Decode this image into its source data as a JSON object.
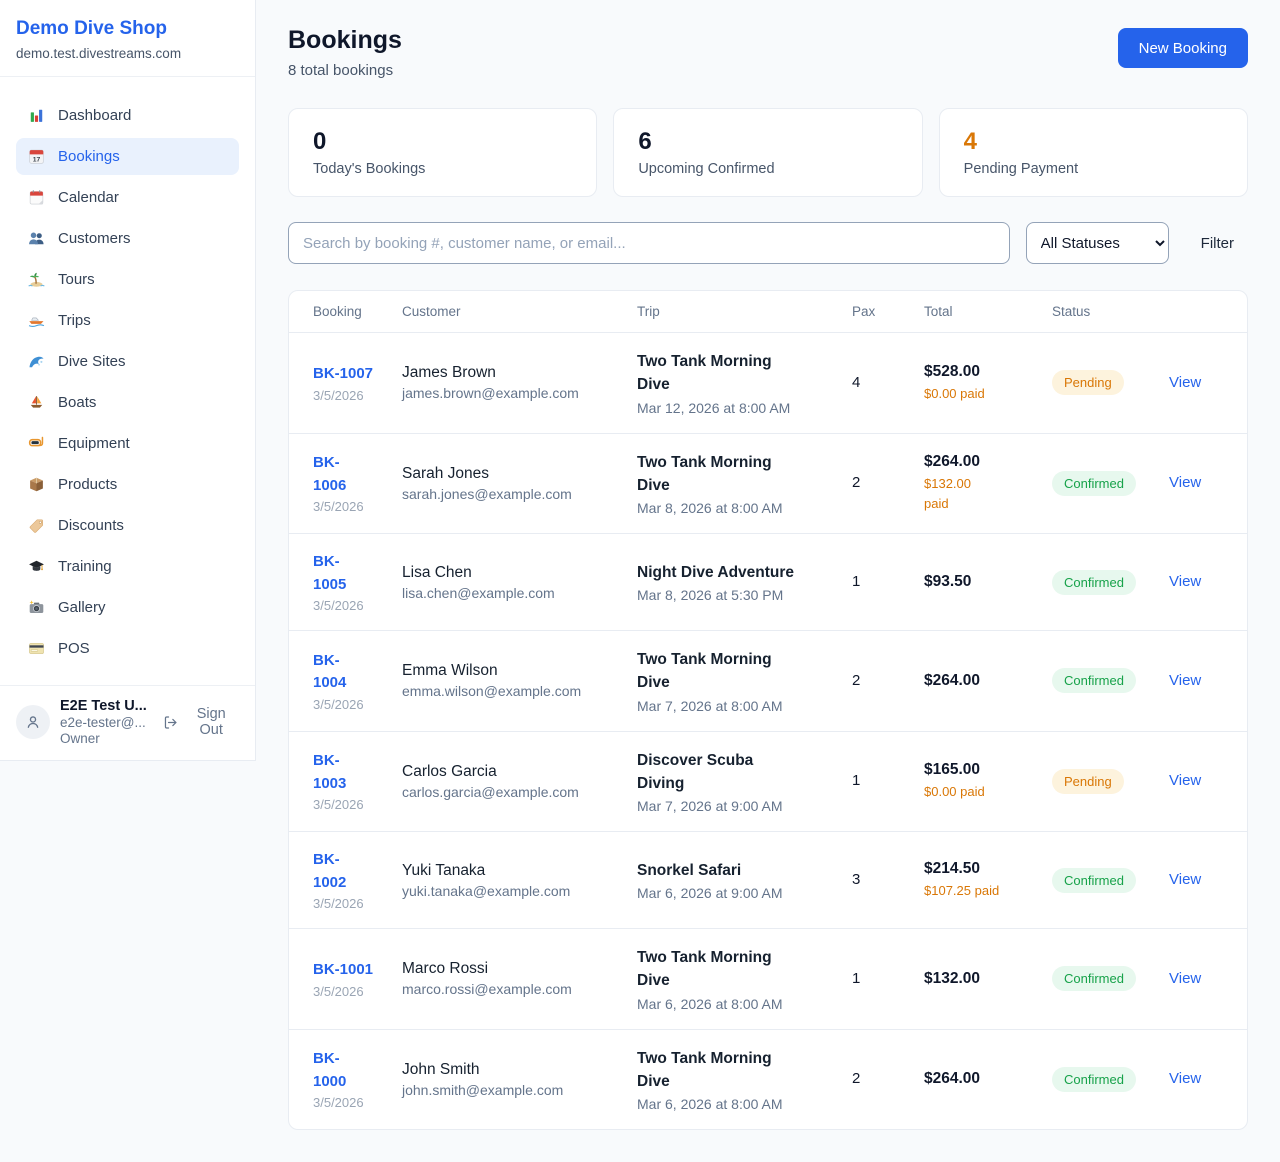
{
  "sidebar": {
    "shop_name": "Demo Dive Shop",
    "shop_domain": "demo.test.divestreams.com",
    "items": [
      {
        "label": "Dashboard",
        "icon": "bar-chart",
        "active": false
      },
      {
        "label": "Bookings",
        "icon": "calendar-date",
        "active": true
      },
      {
        "label": "Calendar",
        "icon": "tear-off-calendar",
        "active": false
      },
      {
        "label": "Customers",
        "icon": "people",
        "active": false
      },
      {
        "label": "Tours",
        "icon": "island",
        "active": false
      },
      {
        "label": "Trips",
        "icon": "speedboat",
        "active": false
      },
      {
        "label": "Dive Sites",
        "icon": "wave",
        "active": false
      },
      {
        "label": "Boats",
        "icon": "sailboat",
        "active": false
      },
      {
        "label": "Equipment",
        "icon": "diving-mask",
        "active": false
      },
      {
        "label": "Products",
        "icon": "package",
        "active": false
      },
      {
        "label": "Discounts",
        "icon": "tag",
        "active": false
      },
      {
        "label": "Training",
        "icon": "graduation-cap",
        "active": false
      },
      {
        "label": "Gallery",
        "icon": "camera",
        "active": false
      },
      {
        "label": "POS",
        "icon": "credit-card",
        "active": false
      }
    ],
    "user": {
      "name": "E2E Test U...",
      "email": "e2e-tester@...",
      "role": "Owner",
      "sign_out_label": "Sign Out"
    }
  },
  "header": {
    "title": "Bookings",
    "subtitle": "8 total bookings",
    "new_booking_label": "New Booking"
  },
  "stats": [
    {
      "value": "0",
      "label": "Today's Bookings",
      "accent": "dark"
    },
    {
      "value": "6",
      "label": "Upcoming Confirmed",
      "accent": "dark"
    },
    {
      "value": "4",
      "label": "Pending Payment",
      "accent": "orange"
    }
  ],
  "toolbar": {
    "search_placeholder": "Search by booking #, customer name, or email...",
    "status_filter_value": "All Statuses",
    "filter_label": "Filter"
  },
  "table": {
    "headers": [
      "Booking",
      "Customer",
      "Trip",
      "Pax",
      "Total",
      "Status",
      ""
    ],
    "rows": [
      {
        "id_lines": [
          "BK-1007"
        ],
        "date": "3/5/2026",
        "name": "James Brown",
        "email": "james.brown@example.com",
        "trip_lines": [
          "Two Tank Morning",
          "Dive"
        ],
        "trip_when": "Mar 12, 2026 at 8:00 AM",
        "pax": "4",
        "total": "$528.00",
        "paid_lines": [
          "$0.00 paid"
        ],
        "status": "Pending",
        "status_type": "pending",
        "action": "View"
      },
      {
        "id_lines": [
          "BK-",
          "1006"
        ],
        "date": "3/5/2026",
        "name": "Sarah Jones",
        "email": "sarah.jones@example.com",
        "trip_lines": [
          "Two Tank Morning",
          "Dive"
        ],
        "trip_when": "Mar 8, 2026 at 8:00 AM",
        "pax": "2",
        "total": "$264.00",
        "paid_lines": [
          "$132.00",
          "paid"
        ],
        "status": "Confirmed",
        "status_type": "confirmed",
        "action": "View"
      },
      {
        "id_lines": [
          "BK-",
          "1005"
        ],
        "date": "3/5/2026",
        "name": "Lisa Chen",
        "email": "lisa.chen@example.com",
        "trip_lines": [
          "Night Dive Adventure"
        ],
        "trip_when": "Mar 8, 2026 at 5:30 PM",
        "pax": "1",
        "total": "$93.50",
        "paid_lines": [],
        "status": "Confirmed",
        "status_type": "confirmed",
        "action": "View"
      },
      {
        "id_lines": [
          "BK-",
          "1004"
        ],
        "date": "3/5/2026",
        "name": "Emma Wilson",
        "email": "emma.wilson@example.com",
        "trip_lines": [
          "Two Tank Morning",
          "Dive"
        ],
        "trip_when": "Mar 7, 2026 at 8:00 AM",
        "pax": "2",
        "total": "$264.00",
        "paid_lines": [],
        "status": "Confirmed",
        "status_type": "confirmed",
        "action": "View"
      },
      {
        "id_lines": [
          "BK-",
          "1003"
        ],
        "date": "3/5/2026",
        "name": "Carlos Garcia",
        "email": "carlos.garcia@example.com",
        "trip_lines": [
          "Discover Scuba",
          "Diving"
        ],
        "trip_when": "Mar 7, 2026 at 9:00 AM",
        "pax": "1",
        "total": "$165.00",
        "paid_lines": [
          "$0.00 paid"
        ],
        "status": "Pending",
        "status_type": "pending",
        "action": "View"
      },
      {
        "id_lines": [
          "BK-",
          "1002"
        ],
        "date": "3/5/2026",
        "name": "Yuki Tanaka",
        "email": "yuki.tanaka@example.com",
        "trip_lines": [
          "Snorkel Safari"
        ],
        "trip_when": "Mar 6, 2026 at 9:00 AM",
        "pax": "3",
        "total": "$214.50",
        "paid_lines": [
          "$107.25 paid"
        ],
        "status": "Confirmed",
        "status_type": "confirmed",
        "action": "View"
      },
      {
        "id_lines": [
          "BK-1001"
        ],
        "date": "3/5/2026",
        "name": "Marco Rossi",
        "email": "marco.rossi@example.com",
        "trip_lines": [
          "Two Tank Morning",
          "Dive"
        ],
        "trip_when": "Mar 6, 2026 at 8:00 AM",
        "pax": "1",
        "total": "$132.00",
        "paid_lines": [],
        "status": "Confirmed",
        "status_type": "confirmed",
        "action": "View"
      },
      {
        "id_lines": [
          "BK-",
          "1000"
        ],
        "date": "3/5/2026",
        "name": "John Smith",
        "email": "john.smith@example.com",
        "trip_lines": [
          "Two Tank Morning",
          "Dive"
        ],
        "trip_when": "Mar 6, 2026 at 8:00 AM",
        "pax": "2",
        "total": "$264.00",
        "paid_lines": [],
        "status": "Confirmed",
        "status_type": "confirmed",
        "action": "View"
      }
    ]
  },
  "colors": {
    "accent_blue": "#2563eb",
    "pending_text": "#d97706",
    "pending_bg": "#fdf3dd",
    "confirmed_text": "#17a24a",
    "confirmed_bg": "#e7f8ee",
    "paid_orange": "#d97706",
    "page_bg": "#f8fafc"
  }
}
